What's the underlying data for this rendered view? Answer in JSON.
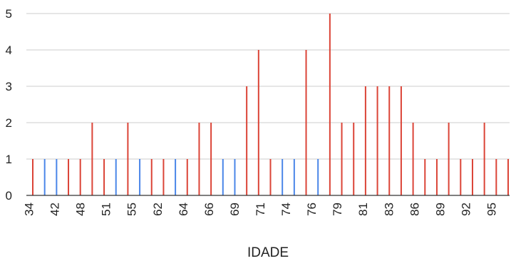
{
  "chart_data": {
    "type": "bar",
    "xlabel": "IDADE",
    "ylabel": "",
    "ylim": [
      0,
      5
    ],
    "yticks": [
      0,
      1,
      2,
      3,
      4,
      5
    ],
    "grid": true,
    "x_tick_labels": [
      "34",
      "42",
      "48",
      "51",
      "55",
      "62",
      "64",
      "66",
      "69",
      "71",
      "74",
      "76",
      "79",
      "81",
      "83",
      "86",
      "89",
      "92",
      "95"
    ],
    "colors": {
      "red_series": "#db4437",
      "blue_series": "#4a86e8"
    },
    "bars": [
      {
        "value": 1,
        "series": "red"
      },
      {
        "value": 1,
        "series": "blue"
      },
      {
        "value": 1,
        "series": "blue"
      },
      {
        "value": 1,
        "series": "red"
      },
      {
        "value": 1,
        "series": "red"
      },
      {
        "value": 2,
        "series": "red"
      },
      {
        "value": 1,
        "series": "red"
      },
      {
        "value": 1,
        "series": "blue"
      },
      {
        "value": 2,
        "series": "red"
      },
      {
        "value": 1,
        "series": "blue"
      },
      {
        "value": 1,
        "series": "red"
      },
      {
        "value": 1,
        "series": "red"
      },
      {
        "value": 1,
        "series": "blue"
      },
      {
        "value": 1,
        "series": "red"
      },
      {
        "value": 2,
        "series": "red"
      },
      {
        "value": 2,
        "series": "red"
      },
      {
        "value": 1,
        "series": "blue"
      },
      {
        "value": 1,
        "series": "blue"
      },
      {
        "value": 3,
        "series": "red"
      },
      {
        "value": 4,
        "series": "red"
      },
      {
        "value": 1,
        "series": "red"
      },
      {
        "value": 1,
        "series": "blue"
      },
      {
        "value": 1,
        "series": "blue"
      },
      {
        "value": 4,
        "series": "red"
      },
      {
        "value": 1,
        "series": "blue"
      },
      {
        "value": 5,
        "series": "red"
      },
      {
        "value": 2,
        "series": "red"
      },
      {
        "value": 2,
        "series": "red"
      },
      {
        "value": 3,
        "series": "red"
      },
      {
        "value": 3,
        "series": "red"
      },
      {
        "value": 3,
        "series": "red"
      },
      {
        "value": 3,
        "series": "red"
      },
      {
        "value": 2,
        "series": "red"
      },
      {
        "value": 1,
        "series": "red"
      },
      {
        "value": 1,
        "series": "red"
      },
      {
        "value": 2,
        "series": "red"
      },
      {
        "value": 1,
        "series": "red"
      },
      {
        "value": 1,
        "series": "red"
      },
      {
        "value": 2,
        "series": "red"
      },
      {
        "value": 1,
        "series": "red"
      },
      {
        "value": 1,
        "series": "red"
      }
    ]
  }
}
